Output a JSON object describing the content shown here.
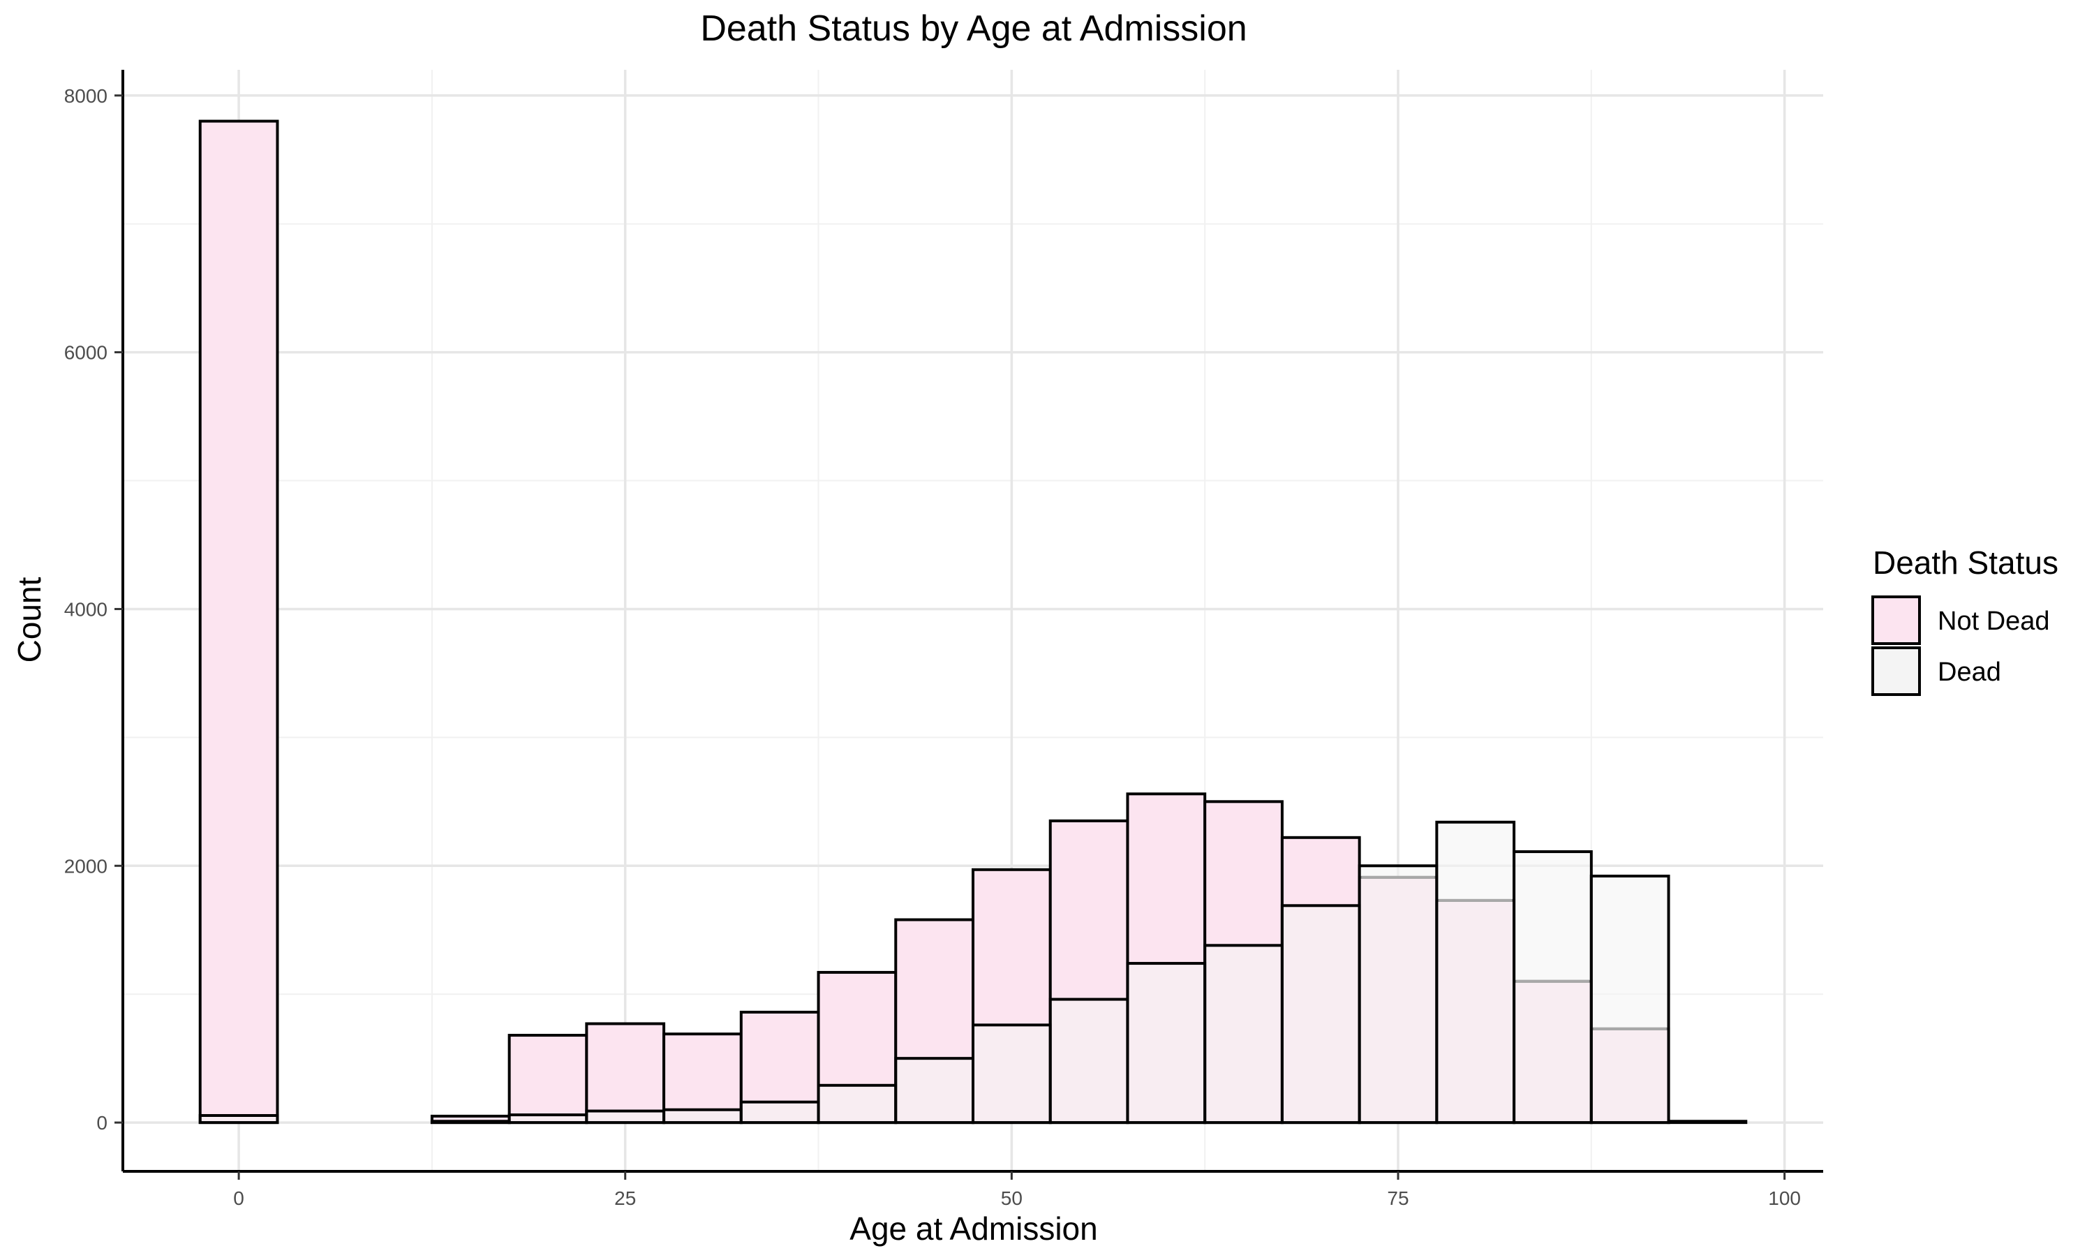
{
  "chart_data": {
    "type": "bar",
    "title": "Death Status by Age at Admission",
    "xlabel": "Age at Admission",
    "ylabel": "Count",
    "xlim": [
      -7.5,
      102.5
    ],
    "ylim": [
      -380,
      8200
    ],
    "x_ticks": [
      0,
      25,
      50,
      75,
      100
    ],
    "y_ticks": [
      0,
      2000,
      4000,
      6000,
      8000
    ],
    "grid": true,
    "bin_width": 5,
    "legend": {
      "title": "Death Status",
      "position": "right",
      "entries": [
        {
          "label": "Not Dead",
          "color": "#fce4f0"
        },
        {
          "label": "Dead",
          "color": "#f4f4f4"
        }
      ]
    },
    "series": [
      {
        "name": "Not Dead",
        "color": "#fce4f0",
        "bin_centers": [
          0,
          5,
          10,
          15,
          20,
          25,
          30,
          35,
          40,
          45,
          50,
          55,
          60,
          65,
          70,
          75,
          80,
          85,
          90,
          95
        ],
        "values": [
          7800,
          0,
          0,
          50,
          680,
          770,
          690,
          860,
          1170,
          1580,
          1970,
          2350,
          2560,
          2500,
          2220,
          1910,
          1730,
          1100,
          730,
          0
        ]
      },
      {
        "name": "Dead",
        "color": "#f4f4f4",
        "bin_centers": [
          0,
          5,
          10,
          15,
          20,
          25,
          30,
          35,
          40,
          45,
          50,
          55,
          60,
          65,
          70,
          75,
          80,
          85,
          90,
          95
        ],
        "values": [
          55,
          0,
          0,
          10,
          60,
          90,
          100,
          160,
          290,
          500,
          760,
          960,
          1240,
          1380,
          1690,
          2000,
          2340,
          2110,
          1920,
          10
        ]
      }
    ]
  },
  "colors": {
    "not_dead_fill": "#fce4f0",
    "dead_fill": "#f4f4f4",
    "outline": "#000000",
    "grid_major": "#e6e6e6",
    "grid_minor": "#f1f1f1",
    "hidden_edge": "#a8a8a8"
  }
}
